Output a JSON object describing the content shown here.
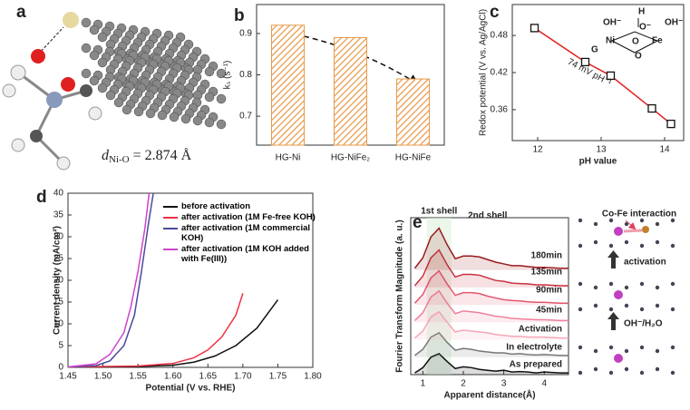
{
  "panel_a": {
    "panel": "a",
    "annotation": {
      "symbol": "d",
      "subscript": "Ni-O",
      "value": " = 2.874 Å"
    }
  },
  "chart_data": [
    {
      "type": "bar",
      "panel": "b",
      "y_label": "kₛ (s⁻¹)",
      "categories": [
        "HG-Ni",
        "HG-NiFe₂",
        "HG-NiFe"
      ],
      "values": [
        0.92,
        0.89,
        0.79
      ],
      "color": "#e89a4a",
      "ylim": [
        0.63,
        0.97
      ],
      "yticks": [
        0.7,
        0.8,
        0.9
      ]
    },
    {
      "type": "scatter",
      "panel": "c",
      "x_label": "pH value",
      "y_label": "Redox potential (V vs. Ag/AgCl)",
      "annotation": "74 mV pH⁻¹",
      "inset_labels": [
        "OH⁻",
        "H",
        "OH⁻",
        "O⁻",
        "Ni",
        "Fe",
        "G",
        "O",
        "O"
      ],
      "x": [
        11.95,
        12.75,
        13.15,
        13.8,
        14.1
      ],
      "values": [
        0.492,
        0.437,
        0.415,
        0.362,
        0.337
      ],
      "color": "#e02020",
      "xlim": [
        11.6,
        14.3
      ],
      "xticks": [
        12,
        13,
        14
      ],
      "ylim": [
        0.31,
        0.53
      ],
      "yticks": [
        0.36,
        0.42,
        0.48
      ]
    },
    {
      "type": "line",
      "panel": "d",
      "x_label": "Potential (V vs. RHE)",
      "y_label": "Current density (mA/cm²)",
      "xlim": [
        1.45,
        1.8
      ],
      "xticks": [
        {
          "value": 1.45,
          "label": "1.45"
        },
        {
          "value": 1.5,
          "label": "1.50"
        },
        {
          "value": 1.55,
          "label": "1.55"
        },
        {
          "value": 1.6,
          "label": "1.60"
        },
        {
          "value": 1.65,
          "label": "1.65"
        },
        {
          "value": 1.7,
          "label": "1.70"
        },
        {
          "value": 1.75,
          "label": "1.75"
        },
        {
          "value": 1.8,
          "label": "1.80"
        }
      ],
      "ylim": [
        0,
        40
      ],
      "yticks": [
        0,
        5,
        10,
        15,
        20,
        25,
        30,
        35,
        40
      ],
      "series": [
        {
          "name": "before activation",
          "color": "#111111",
          "x": [
            1.45,
            1.55,
            1.6,
            1.63,
            1.66,
            1.69,
            1.72,
            1.75
          ],
          "values": [
            0.1,
            0.2,
            0.5,
            1.2,
            2.6,
            5,
            9,
            15.5
          ]
        },
        {
          "name": "after activation (1M Fe-free KOH)",
          "color": "#ee3344",
          "x": [
            1.45,
            1.55,
            1.6,
            1.63,
            1.65,
            1.67,
            1.69,
            1.7
          ],
          "values": [
            0.1,
            0.3,
            0.9,
            2.2,
            4,
            7,
            12,
            17
          ]
        },
        {
          "name": "after activation (1M commercial KOH)",
          "color": "#4a4a9a",
          "x": [
            1.45,
            1.49,
            1.51,
            1.53,
            1.545,
            1.555,
            1.565,
            1.572
          ],
          "values": [
            0.1,
            0.4,
            1.5,
            5,
            12,
            22,
            33,
            40
          ]
        },
        {
          "name": "after activation (1M KOH added with Fe(III))",
          "color": "#cc44cc",
          "x": [
            1.45,
            1.49,
            1.51,
            1.53,
            1.54,
            1.55,
            1.56,
            1.566
          ],
          "values": [
            0.1,
            0.8,
            3,
            8,
            14,
            22,
            32,
            40
          ]
        }
      ]
    },
    {
      "type": "line",
      "panel": "e",
      "offset": true,
      "x_label": "Apparent distance(Å)",
      "y_label": "Fourier Transform Magnitude (a. u.)",
      "annotations": [
        "1st shell",
        "2nd shell"
      ],
      "diagram_labels": [
        "Co-Fe interaction",
        "activation",
        "OH⁻/H₂O"
      ],
      "xlim": [
        0.7,
        4.6
      ],
      "xticks": [
        1,
        2,
        3,
        4
      ],
      "ylim": [
        0,
        18
      ],
      "x": [
        0.8,
        1.0,
        1.2,
        1.4,
        1.6,
        1.8,
        2.0,
        2.2,
        2.4,
        2.6,
        2.8,
        3.0,
        3.2,
        3.4,
        3.6,
        3.8,
        4.0,
        4.2,
        4.4,
        4.6
      ],
      "series": [
        {
          "name": "As prepared",
          "color": "#111111",
          "values": [
            0.2,
            0.8,
            2.0,
            2.4,
            1.5,
            0.7,
            0.9,
            0.8,
            0.6,
            0.5,
            0.4,
            0.5,
            0.3,
            0.35,
            0.3,
            0.2,
            0.3,
            0.25,
            0.2,
            0.2
          ]
        },
        {
          "name": "In electrolyte",
          "color": "#777777",
          "values": [
            0.2,
            0.9,
            2.3,
            2.8,
            1.7,
            0.8,
            1.0,
            0.9,
            0.7,
            0.6,
            0.5,
            0.5,
            0.35,
            0.4,
            0.3,
            0.25,
            0.3,
            0.25,
            0.2,
            0.2
          ]
        },
        {
          "name": "Activation",
          "color": "#f4a6b8",
          "values": [
            0.2,
            1.0,
            2.6,
            3.2,
            2.0,
            0.9,
            1.1,
            1.0,
            0.9,
            0.8,
            0.6,
            0.5,
            0.4,
            0.4,
            0.3,
            0.3,
            0.3,
            0.25,
            0.2,
            0.2
          ]
        },
        {
          "name": "45min",
          "color": "#ee7f99",
          "values": [
            0.2,
            1.1,
            2.9,
            3.6,
            2.2,
            1.0,
            1.3,
            1.2,
            1.1,
            0.9,
            0.7,
            0.6,
            0.45,
            0.4,
            0.35,
            0.3,
            0.3,
            0.25,
            0.2,
            0.2
          ]
        },
        {
          "name": "90min",
          "color": "#e2576f",
          "values": [
            0.2,
            1.2,
            3.1,
            3.9,
            2.4,
            1.1,
            1.4,
            1.4,
            1.3,
            1.0,
            0.8,
            0.6,
            0.5,
            0.45,
            0.35,
            0.3,
            0.3,
            0.25,
            0.2,
            0.2
          ]
        },
        {
          "name": "135min",
          "color": "#c8323f",
          "values": [
            0.2,
            1.3,
            3.4,
            4.3,
            2.6,
            1.2,
            1.5,
            1.5,
            1.4,
            1.1,
            0.8,
            0.7,
            0.5,
            0.45,
            0.4,
            0.3,
            0.3,
            0.25,
            0.2,
            0.2
          ]
        },
        {
          "name": "180min",
          "color": "#9a1a1e",
          "values": [
            0.2,
            1.4,
            3.8,
            4.8,
            2.9,
            1.3,
            1.6,
            1.6,
            1.5,
            1.2,
            0.9,
            0.7,
            0.5,
            0.5,
            0.4,
            0.3,
            0.3,
            0.25,
            0.2,
            0.2
          ]
        }
      ]
    }
  ]
}
